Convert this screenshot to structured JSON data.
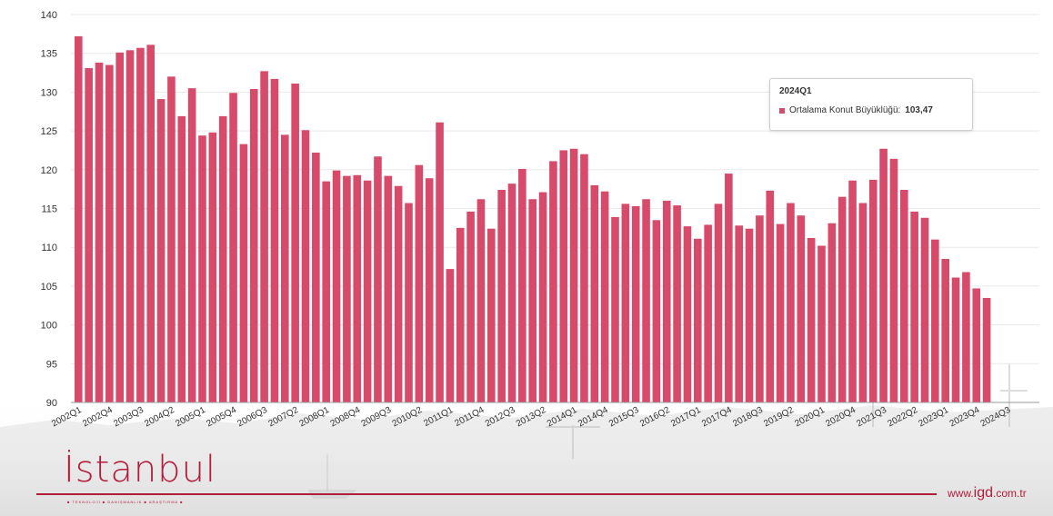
{
  "colors": {
    "bar": "#d84a6a",
    "brand": "#b31c3a",
    "grid": "#e9e9e9"
  },
  "chart_data": {
    "type": "bar",
    "title": "",
    "xlabel": "",
    "ylabel": "",
    "ylim": [
      90,
      140
    ],
    "yticks": [
      90,
      95,
      100,
      105,
      110,
      115,
      120,
      125,
      130,
      135,
      140
    ],
    "grid": true,
    "categories": [
      "2002Q1",
      "2002Q2",
      "2002Q3",
      "2002Q4",
      "2003Q1",
      "2003Q2",
      "2003Q3",
      "2003Q4",
      "2004Q1",
      "2004Q2",
      "2004Q3",
      "2004Q4",
      "2005Q1",
      "2005Q2",
      "2005Q3",
      "2005Q4",
      "2006Q1",
      "2006Q2",
      "2006Q3",
      "2006Q4",
      "2007Q1",
      "2007Q2",
      "2007Q3",
      "2007Q4",
      "2008Q1",
      "2008Q2",
      "2008Q3",
      "2008Q4",
      "2009Q1",
      "2009Q2",
      "2009Q3",
      "2009Q4",
      "2010Q1",
      "2010Q2",
      "2010Q3",
      "2010Q4",
      "2011Q1",
      "2011Q2",
      "2011Q3",
      "2011Q4",
      "2012Q1",
      "2012Q2",
      "2012Q3",
      "2012Q4",
      "2013Q1",
      "2013Q2",
      "2013Q3",
      "2013Q4",
      "2014Q1",
      "2014Q2",
      "2014Q3",
      "2014Q4",
      "2015Q1",
      "2015Q2",
      "2015Q3",
      "2015Q4",
      "2016Q1",
      "2016Q2",
      "2016Q3",
      "2016Q4",
      "2017Q1",
      "2017Q2",
      "2017Q3",
      "2017Q4",
      "2018Q1",
      "2018Q2",
      "2018Q3",
      "2018Q4",
      "2019Q1",
      "2019Q2",
      "2019Q3",
      "2019Q4",
      "2020Q1",
      "2020Q2",
      "2020Q3",
      "2020Q4",
      "2021Q1",
      "2021Q2",
      "2021Q3",
      "2021Q4",
      "2022Q1",
      "2022Q2",
      "2022Q3",
      "2022Q4",
      "2023Q1",
      "2023Q2",
      "2023Q3",
      "2023Q4",
      "2024Q1"
    ],
    "xtick_labels": [
      "2002Q1",
      "2002Q4",
      "2003Q3",
      "2004Q2",
      "2005Q1",
      "2005Q4",
      "2006Q3",
      "2007Q2",
      "2008Q1",
      "2008Q4",
      "2009Q3",
      "2010Q2",
      "2011Q1",
      "2011Q4",
      "2012Q3",
      "2013Q2",
      "2014Q1",
      "2014Q4",
      "2015Q3",
      "2016Q2",
      "2017Q1",
      "2017Q4",
      "2018Q3",
      "2019Q2",
      "2020Q1",
      "2020Q4",
      "2021Q3",
      "2022Q2",
      "2023Q1",
      "2023Q4",
      "2024Q3"
    ],
    "series": [
      {
        "name": "Ortalama Konut Büyüklüğü",
        "values": [
          137.2,
          133.1,
          133.8,
          133.5,
          135.1,
          135.4,
          135.7,
          136.1,
          129.1,
          132.0,
          126.9,
          130.5,
          124.4,
          124.8,
          126.9,
          129.9,
          123.3,
          130.4,
          132.7,
          131.7,
          124.5,
          131.1,
          125.1,
          122.2,
          118.5,
          119.9,
          119.2,
          119.3,
          118.6,
          121.7,
          119.2,
          117.9,
          115.7,
          120.6,
          118.9,
          126.1,
          107.2,
          112.5,
          114.6,
          116.2,
          112.4,
          117.4,
          118.2,
          120.1,
          116.2,
          117.1,
          121.1,
          122.5,
          122.7,
          122.0,
          118.0,
          117.2,
          113.9,
          115.6,
          115.3,
          116.2,
          113.5,
          116.0,
          115.4,
          112.7,
          111.1,
          112.9,
          115.6,
          119.5,
          112.8,
          112.4,
          114.1,
          117.3,
          113.0,
          115.7,
          114.1,
          111.2,
          110.2,
          113.1,
          116.5,
          118.6,
          115.7,
          118.7,
          122.7,
          121.4,
          117.4,
          114.6,
          113.8,
          111.0,
          108.5,
          106.1,
          106.8,
          104.7,
          103.47
        ]
      }
    ],
    "tooltip": {
      "category": "2024Q1",
      "series_label": "Ortalama Konut Büyüklüğü:",
      "value_label": "103,47"
    }
  },
  "branding": {
    "logo_text": "İstanbul",
    "logo_tagline": "■ TEKNOLOJİ ■ DANIŞMANLIK ■ ARAŞTIRMA ■",
    "site_prefix": "www.",
    "site_main": "igd",
    "site_suffix": ".com.tr"
  }
}
